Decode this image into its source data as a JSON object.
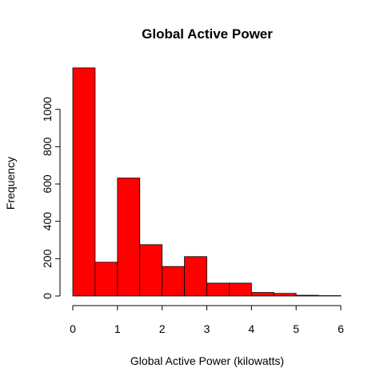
{
  "chart_data": {
    "type": "bar",
    "subtype": "histogram",
    "title": "Global Active Power",
    "xlabel": "Global Active Power (kilowatts)",
    "ylabel": "Frequency",
    "bin_edges": [
      0,
      0.5,
      1,
      1.5,
      2,
      2.5,
      3,
      3.5,
      4,
      4.5,
      5,
      5.5,
      6
    ],
    "values": [
      1222,
      181,
      632,
      275,
      158,
      211,
      69,
      69,
      19,
      14,
      4,
      2
    ],
    "xlim": [
      0,
      6
    ],
    "ylim": [
      0,
      1200
    ],
    "xticks": [
      0,
      1,
      2,
      3,
      4,
      5,
      6
    ],
    "yticks": [
      0,
      200,
      400,
      600,
      800,
      1000
    ],
    "bar_color": "#FF0000",
    "edge_color": "#000000",
    "grid": false,
    "legend": "none"
  }
}
